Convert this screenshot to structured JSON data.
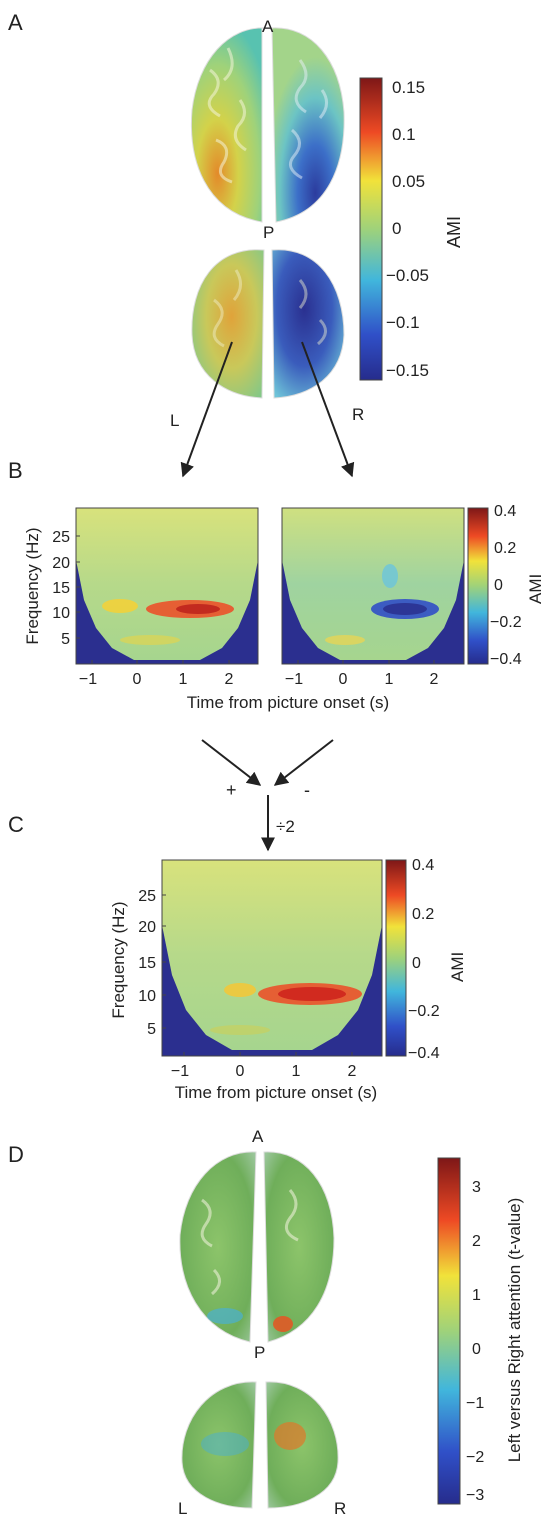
{
  "panels": {
    "a": {
      "letter": "A",
      "dir_anterior": "A",
      "dir_posterior": "P",
      "dir_left": "L",
      "dir_right": "R",
      "colorbar": {
        "label": "AMI",
        "ticks": [
          "0.15",
          "0.1",
          "0.05",
          "0",
          "−0.05",
          "−0.1",
          "−0.15"
        ]
      }
    },
    "b": {
      "letter": "B",
      "ylabel": "Frequency (Hz)",
      "xlabel": "Time from picture onset (s)",
      "yticks": [
        "25",
        "20",
        "15",
        "10",
        "5"
      ],
      "xticks": [
        "−1",
        "0",
        "1",
        "2"
      ],
      "colorbar": {
        "label": "AMI",
        "ticks": [
          "0.4",
          "0.2",
          "0",
          "−0.2",
          "−0.4"
        ]
      }
    },
    "combine": {
      "plus": "+",
      "minus": "-",
      "divide": "÷2"
    },
    "c": {
      "letter": "C",
      "ylabel": "Frequency (Hz)",
      "xlabel": "Time from picture onset (s)",
      "yticks": [
        "25",
        "20",
        "15",
        "10",
        "5"
      ],
      "xticks": [
        "−1",
        "0",
        "1",
        "2"
      ],
      "colorbar": {
        "label": "AMI",
        "ticks": [
          "0.4",
          "0.2",
          "0",
          "−0.2",
          "−0.4"
        ]
      }
    },
    "d": {
      "letter": "D",
      "dir_anterior": "A",
      "dir_posterior": "P",
      "dir_left": "L",
      "dir_right": "R",
      "colorbar": {
        "label": "Left versus Right attention (t-value)",
        "ticks": [
          "3",
          "2",
          "1",
          "0",
          "−1",
          "−2",
          "−3"
        ]
      }
    }
  },
  "colors": {
    "jet_low": "#2b2f8f",
    "jet_mid": "#b5d96a",
    "jet_high": "#8b1a1a",
    "outside_cone": "#2b2f8f"
  }
}
